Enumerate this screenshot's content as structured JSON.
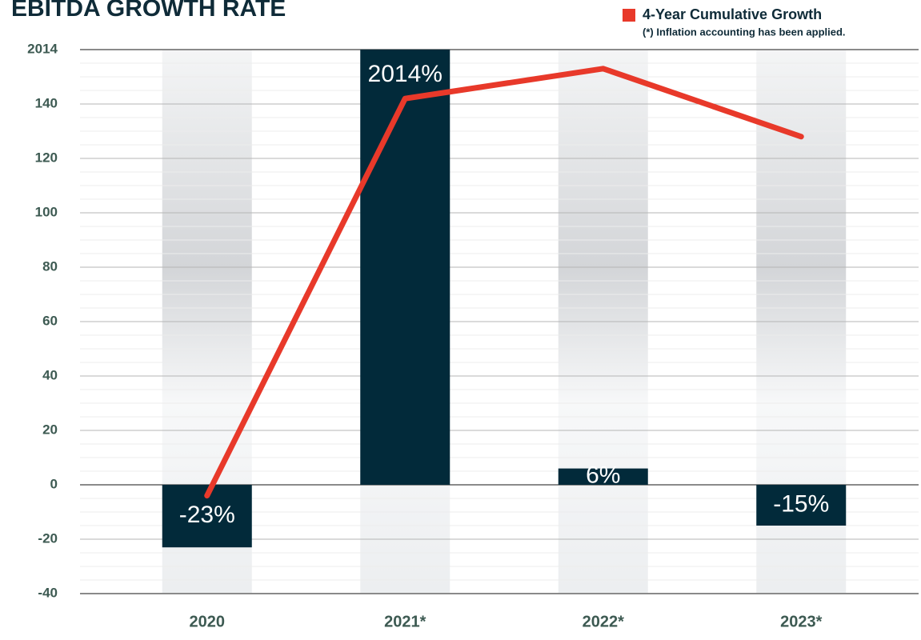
{
  "chart_data": {
    "type": "bar",
    "title": "EBITDA GROWTH RATE",
    "note": "(*) Inflation accounting has been applied.",
    "categories": [
      "2020",
      "2021*",
      "2022*",
      "2023*"
    ],
    "values": [
      -23,
      2014,
      6,
      -15
    ],
    "value_labels": [
      "-23%",
      "2014%",
      "6%",
      "-15%"
    ],
    "color": "#022a3a",
    "series": [
      {
        "name": "4-Year Cumulative Growth",
        "color": "#e8392a",
        "values": [
          -4,
          142,
          153,
          128
        ]
      }
    ],
    "ylim": [
      -40,
      160
    ],
    "yticks": [
      -40,
      -20,
      0,
      20,
      40,
      60,
      80,
      100,
      120,
      140,
      {
        "value": 160,
        "label": "2014"
      }
    ],
    "grid": true,
    "legend": "top-right"
  }
}
